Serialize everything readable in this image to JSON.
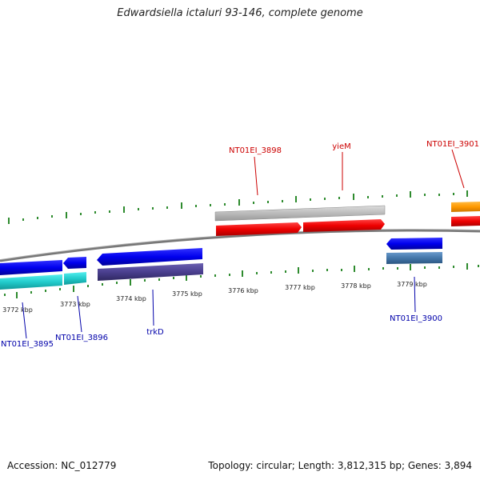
{
  "title": "Edwardsiella ictaluri 93-146, complete genome",
  "footer": {
    "accession": "Accession: NC_012779",
    "summary": "Topology: circular; Length: 3,812,315 bp; Genes: 3,894"
  },
  "colors": {
    "backbone": "#888888",
    "tick": "#2e8b2e",
    "label_red": "#cc0000",
    "label_blue": "#0000aa",
    "gene_blue": "#0000ee",
    "gene_cyan": "#22cccc",
    "gene_purple": "#4a3f8f",
    "gene_red": "#ee0000",
    "gene_grey": "#bbbbbb",
    "gene_steel": "#4477aa",
    "gene_orange": "#ff9900"
  },
  "scale": {
    "unit": "kbp",
    "ticks": [
      "3772 kbp",
      "3773 kbp",
      "3774 kbp",
      "3775 kbp",
      "3776 kbp",
      "3777 kbp",
      "3778 kbp",
      "3779 kbp"
    ]
  },
  "gene_labels": {
    "top": [
      "NT01EI_3898",
      "yieM",
      "NT01EI_3901"
    ],
    "bottom": [
      "NT01EI_3895",
      "NT01EI_3896",
      "trkD",
      "NT01EI_3900"
    ]
  }
}
